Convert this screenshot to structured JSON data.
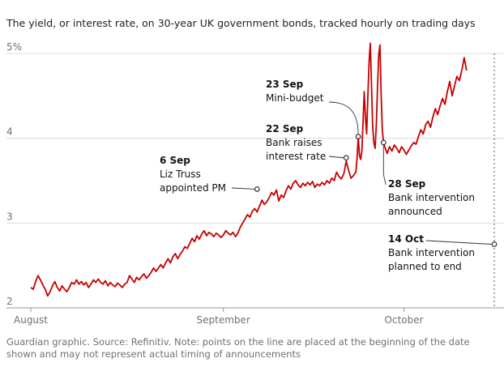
{
  "header": {
    "subtitle": "The yield, or interest rate, on 30-year UK government bonds, tracked hourly on trading days"
  },
  "footer": {
    "note": "Guardian graphic. Source: Refinitiv. Note: points on the line are placed at the beginning of the date shown and may not represent actual timing of announcements"
  },
  "colors": {
    "line": "#c70000",
    "grid": "#dcdcdc",
    "axis_text": "#707070",
    "annotation_text": "#121212",
    "leader": "#333333"
  },
  "chart_data": {
    "type": "line",
    "title": "",
    "xlabel": "",
    "ylabel": "",
    "x_unit": "trading day",
    "y_unit": "% yield",
    "xlim": [
      0,
      77
    ],
    "ylim": [
      2,
      5
    ],
    "grid": true,
    "y_ticks": [
      {
        "value": 5,
        "label": "5%"
      },
      {
        "value": 4,
        "label": "4"
      },
      {
        "value": 3,
        "label": "3"
      },
      {
        "value": 2,
        "label": "2"
      }
    ],
    "x_ticks": [
      {
        "value": 0,
        "label": "August"
      },
      {
        "value": 32,
        "label": "September"
      },
      {
        "value": 62,
        "label": "October"
      }
    ],
    "series": [
      {
        "points": [
          [
            0,
            2.24
          ],
          [
            0.4,
            2.22
          ],
          [
            0.8,
            2.31
          ],
          [
            1.2,
            2.38
          ],
          [
            1.6,
            2.33
          ],
          [
            2,
            2.27
          ],
          [
            2.4,
            2.22
          ],
          [
            2.8,
            2.14
          ],
          [
            3.2,
            2.19
          ],
          [
            3.6,
            2.26
          ],
          [
            4,
            2.31
          ],
          [
            4.4,
            2.24
          ],
          [
            4.8,
            2.2
          ],
          [
            5.2,
            2.26
          ],
          [
            5.6,
            2.22
          ],
          [
            6,
            2.19
          ],
          [
            6.4,
            2.24
          ],
          [
            6.8,
            2.3
          ],
          [
            7.2,
            2.28
          ],
          [
            7.6,
            2.33
          ],
          [
            8,
            2.28
          ],
          [
            8.4,
            2.31
          ],
          [
            8.8,
            2.27
          ],
          [
            9.2,
            2.3
          ],
          [
            9.6,
            2.24
          ],
          [
            10,
            2.28
          ],
          [
            10.4,
            2.33
          ],
          [
            10.8,
            2.3
          ],
          [
            11.2,
            2.34
          ],
          [
            11.6,
            2.3
          ],
          [
            12,
            2.28
          ],
          [
            12.4,
            2.32
          ],
          [
            12.8,
            2.26
          ],
          [
            13.2,
            2.3
          ],
          [
            13.6,
            2.27
          ],
          [
            14,
            2.25
          ],
          [
            14.4,
            2.29
          ],
          [
            14.8,
            2.27
          ],
          [
            15.2,
            2.24
          ],
          [
            15.6,
            2.28
          ],
          [
            16,
            2.3
          ],
          [
            16.4,
            2.38
          ],
          [
            16.8,
            2.34
          ],
          [
            17.2,
            2.3
          ],
          [
            17.6,
            2.36
          ],
          [
            18,
            2.33
          ],
          [
            18.4,
            2.37
          ],
          [
            18.8,
            2.4
          ],
          [
            19.2,
            2.35
          ],
          [
            19.6,
            2.38
          ],
          [
            20,
            2.42
          ],
          [
            20.4,
            2.47
          ],
          [
            20.8,
            2.43
          ],
          [
            21.2,
            2.47
          ],
          [
            21.6,
            2.51
          ],
          [
            22,
            2.47
          ],
          [
            22.4,
            2.53
          ],
          [
            22.8,
            2.58
          ],
          [
            23.2,
            2.53
          ],
          [
            23.6,
            2.6
          ],
          [
            24,
            2.64
          ],
          [
            24.4,
            2.58
          ],
          [
            24.8,
            2.63
          ],
          [
            25.2,
            2.67
          ],
          [
            25.6,
            2.72
          ],
          [
            26,
            2.7
          ],
          [
            26.4,
            2.76
          ],
          [
            26.8,
            2.82
          ],
          [
            27.2,
            2.78
          ],
          [
            27.6,
            2.85
          ],
          [
            28,
            2.81
          ],
          [
            28.4,
            2.87
          ],
          [
            28.8,
            2.91
          ],
          [
            29.2,
            2.85
          ],
          [
            29.6,
            2.89
          ],
          [
            30,
            2.87
          ],
          [
            30.4,
            2.84
          ],
          [
            30.8,
            2.88
          ],
          [
            31.2,
            2.86
          ],
          [
            31.6,
            2.83
          ],
          [
            32,
            2.86
          ],
          [
            32.4,
            2.91
          ],
          [
            32.8,
            2.88
          ],
          [
            33.2,
            2.86
          ],
          [
            33.6,
            2.89
          ],
          [
            34,
            2.84
          ],
          [
            34.4,
            2.88
          ],
          [
            34.8,
            2.95
          ],
          [
            35.2,
            3.0
          ],
          [
            35.6,
            3.05
          ],
          [
            36,
            3.1
          ],
          [
            36.4,
            3.07
          ],
          [
            36.8,
            3.14
          ],
          [
            37.2,
            3.17
          ],
          [
            37.6,
            3.13
          ],
          [
            38,
            3.2
          ],
          [
            38.4,
            3.27
          ],
          [
            38.8,
            3.22
          ],
          [
            39.2,
            3.25
          ],
          [
            39.6,
            3.3
          ],
          [
            40,
            3.36
          ],
          [
            40.4,
            3.33
          ],
          [
            40.8,
            3.39
          ],
          [
            41.2,
            3.26
          ],
          [
            41.6,
            3.33
          ],
          [
            42,
            3.3
          ],
          [
            42.4,
            3.38
          ],
          [
            42.8,
            3.44
          ],
          [
            43.2,
            3.4
          ],
          [
            43.6,
            3.47
          ],
          [
            44,
            3.5
          ],
          [
            44.4,
            3.45
          ],
          [
            44.8,
            3.42
          ],
          [
            45.2,
            3.47
          ],
          [
            45.6,
            3.44
          ],
          [
            46,
            3.48
          ],
          [
            46.4,
            3.45
          ],
          [
            46.8,
            3.49
          ],
          [
            47.2,
            3.42
          ],
          [
            47.6,
            3.46
          ],
          [
            48,
            3.44
          ],
          [
            48.4,
            3.48
          ],
          [
            48.8,
            3.45
          ],
          [
            49.2,
            3.5
          ],
          [
            49.6,
            3.47
          ],
          [
            50,
            3.53
          ],
          [
            50.4,
            3.5
          ],
          [
            50.8,
            3.6
          ],
          [
            51.2,
            3.55
          ],
          [
            51.6,
            3.52
          ],
          [
            52,
            3.58
          ],
          [
            52.4,
            3.73
          ],
          [
            52.8,
            3.62
          ],
          [
            53.2,
            3.53
          ],
          [
            53.6,
            3.56
          ],
          [
            54,
            3.6
          ],
          [
            54.2,
            3.75
          ],
          [
            54.4,
            4.02
          ],
          [
            54.6,
            3.8
          ],
          [
            54.8,
            3.75
          ],
          [
            55,
            3.85
          ],
          [
            55.2,
            4.2
          ],
          [
            55.4,
            4.55
          ],
          [
            55.6,
            4.25
          ],
          [
            55.8,
            4.05
          ],
          [
            56,
            4.5
          ],
          [
            56.2,
            4.9
          ],
          [
            56.4,
            5.12
          ],
          [
            56.6,
            4.62
          ],
          [
            56.8,
            4.15
          ],
          [
            57,
            3.95
          ],
          [
            57.2,
            3.88
          ],
          [
            57.4,
            4.15
          ],
          [
            57.6,
            4.6
          ],
          [
            57.8,
            4.98
          ],
          [
            58,
            5.1
          ],
          [
            58.2,
            4.55
          ],
          [
            58.4,
            4.1
          ],
          [
            58.6,
            3.95
          ],
          [
            58.8,
            3.9
          ],
          [
            59,
            3.86
          ],
          [
            59.2,
            3.82
          ],
          [
            59.6,
            3.9
          ],
          [
            60,
            3.85
          ],
          [
            60.4,
            3.92
          ],
          [
            60.8,
            3.88
          ],
          [
            61.2,
            3.83
          ],
          [
            61.6,
            3.9
          ],
          [
            62,
            3.86
          ],
          [
            62.4,
            3.81
          ],
          [
            62.8,
            3.86
          ],
          [
            63.2,
            3.91
          ],
          [
            63.6,
            3.95
          ],
          [
            64,
            3.93
          ],
          [
            64.4,
            4.02
          ],
          [
            64.8,
            4.1
          ],
          [
            65.2,
            4.05
          ],
          [
            65.6,
            4.16
          ],
          [
            66,
            4.2
          ],
          [
            66.4,
            4.13
          ],
          [
            66.8,
            4.25
          ],
          [
            67.2,
            4.35
          ],
          [
            67.6,
            4.28
          ],
          [
            68,
            4.38
          ],
          [
            68.4,
            4.47
          ],
          [
            68.8,
            4.4
          ],
          [
            69.2,
            4.55
          ],
          [
            69.6,
            4.67
          ],
          [
            70,
            4.5
          ],
          [
            70.4,
            4.62
          ],
          [
            70.8,
            4.73
          ],
          [
            71.2,
            4.68
          ],
          [
            71.6,
            4.8
          ],
          [
            72,
            4.95
          ],
          [
            72.4,
            4.8
          ]
        ]
      }
    ],
    "markers": [
      {
        "x": 37.6,
        "y": 3.4
      },
      {
        "x": 52.4,
        "y": 3.77
      },
      {
        "x": 54.4,
        "y": 4.02
      },
      {
        "x": 58.6,
        "y": 3.95
      },
      {
        "x": 77,
        "y": 2.75
      }
    ],
    "vertical_reference": {
      "x": 77
    },
    "annotations": [
      {
        "title": "6 Sep",
        "lines": [
          "Liz Truss",
          "appointed PM"
        ],
        "align": "left"
      },
      {
        "title": "23 Sep",
        "lines": [
          "Mini-budget"
        ],
        "align": "left"
      },
      {
        "title": "22 Sep",
        "lines": [
          "Bank raises",
          "interest rate"
        ],
        "align": "left"
      },
      {
        "title": "28 Sep",
        "lines": [
          "Bank intervention",
          "announced"
        ],
        "align": "left"
      },
      {
        "title": "14 Oct",
        "lines": [
          "Bank intervention",
          "planned to end"
        ],
        "align": "left"
      }
    ]
  }
}
